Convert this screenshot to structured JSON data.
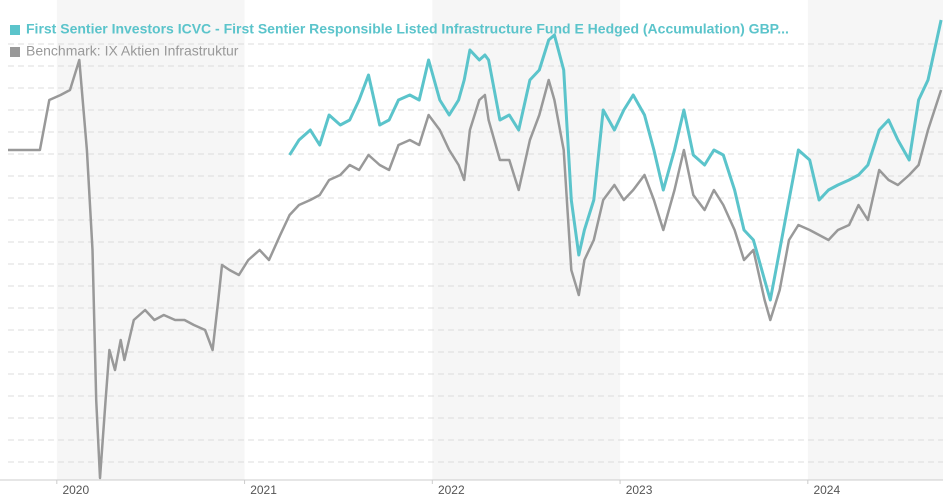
{
  "chart_data": {
    "type": "line",
    "x": [
      2019.74,
      2019.8,
      2019.91,
      2019.96,
      2020.02,
      2020.07,
      2020.12,
      2020.16,
      2020.19,
      2020.21,
      2020.23,
      2020.26,
      2020.28,
      2020.31,
      2020.34,
      2020.36,
      2020.41,
      2020.47,
      2020.52,
      2020.57,
      2020.63,
      2020.68,
      2020.73,
      2020.79,
      2020.83,
      2020.86,
      2020.88,
      2020.92,
      2020.97,
      2021.02,
      2021.08,
      2021.13,
      2021.19,
      2021.24,
      2021.29,
      2021.35,
      2021.4,
      2021.45,
      2021.51,
      2021.56,
      2021.61,
      2021.66,
      2021.72,
      2021.77,
      2021.82,
      2021.88,
      2021.93,
      2021.98,
      2022.04,
      2022.09,
      2022.14,
      2022.17,
      2022.2,
      2022.25,
      2022.28,
      2022.3,
      2022.36,
      2022.41,
      2022.46,
      2022.52,
      2022.57,
      2022.62,
      2022.65,
      2022.7,
      2022.74,
      2022.78,
      2022.81,
      2022.86,
      2022.91,
      2022.97,
      2023.02,
      2023.07,
      2023.13,
      2023.18,
      2023.23,
      2023.29,
      2023.34,
      2023.39,
      2023.45,
      2023.5,
      2023.55,
      2023.61,
      2023.66,
      2023.71,
      2023.77,
      2023.8,
      2023.85,
      2023.9,
      2023.95,
      2024.01,
      2024.06,
      2024.11,
      2024.16,
      2024.22,
      2024.27,
      2024.32,
      2024.38,
      2024.43,
      2024.48,
      2024.54,
      2024.59,
      2024.64,
      2024.71
    ],
    "series": [
      {
        "name": "First Sentier Investors ICVC - First Sentier Responsible Listed Infrastructure Fund E Hedged (Accumulation) GBP...",
        "color": "#5bc4cb",
        "values": [
          null,
          null,
          null,
          null,
          null,
          null,
          null,
          null,
          null,
          null,
          null,
          null,
          null,
          null,
          null,
          null,
          null,
          null,
          null,
          null,
          null,
          null,
          null,
          null,
          null,
          null,
          null,
          null,
          null,
          null,
          null,
          null,
          null,
          325,
          340,
          350,
          335,
          365,
          355,
          360,
          380,
          405,
          355,
          360,
          380,
          385,
          380,
          420,
          380,
          365,
          380,
          400,
          430,
          420,
          425,
          420,
          360,
          365,
          350,
          400,
          410,
          440,
          445,
          410,
          280,
          225,
          250,
          280,
          370,
          350,
          370,
          385,
          365,
          330,
          290,
          330,
          370,
          325,
          315,
          330,
          325,
          290,
          250,
          240,
          200,
          180,
          230,
          280,
          330,
          320,
          280,
          290,
          295,
          300,
          305,
          315,
          350,
          360,
          340,
          320,
          380,
          400,
          460
        ]
      },
      {
        "name": "Benchmark: IX Aktien Infrastruktur",
        "color": "#999999",
        "values": [
          330,
          330,
          330,
          380,
          385,
          390,
          420,
          330,
          230,
          80,
          2,
          80,
          130,
          110,
          140,
          120,
          160,
          170,
          160,
          165,
          160,
          160,
          155,
          150,
          130,
          180,
          215,
          210,
          205,
          220,
          230,
          220,
          245,
          265,
          275,
          280,
          285,
          300,
          305,
          315,
          310,
          325,
          315,
          310,
          335,
          340,
          335,
          365,
          350,
          330,
          315,
          300,
          350,
          380,
          385,
          360,
          320,
          320,
          290,
          340,
          365,
          400,
          380,
          330,
          210,
          185,
          220,
          240,
          280,
          295,
          280,
          290,
          305,
          280,
          250,
          290,
          330,
          285,
          270,
          290,
          275,
          250,
          220,
          230,
          180,
          160,
          190,
          240,
          255,
          250,
          245,
          240,
          250,
          255,
          275,
          260,
          310,
          300,
          295,
          305,
          315,
          350,
          390
        ]
      }
    ],
    "xlim": [
      2019.74,
      2024.72
    ],
    "xticks": [
      2020,
      2021,
      2022,
      2023,
      2024
    ],
    "ylim": [
      0,
      480
    ],
    "yticks": [
      18,
      40,
      62,
      84,
      106,
      128,
      150,
      172,
      194,
      216,
      238,
      260,
      282,
      304,
      326,
      348,
      370,
      392,
      414,
      436
    ],
    "grid": true
  }
}
